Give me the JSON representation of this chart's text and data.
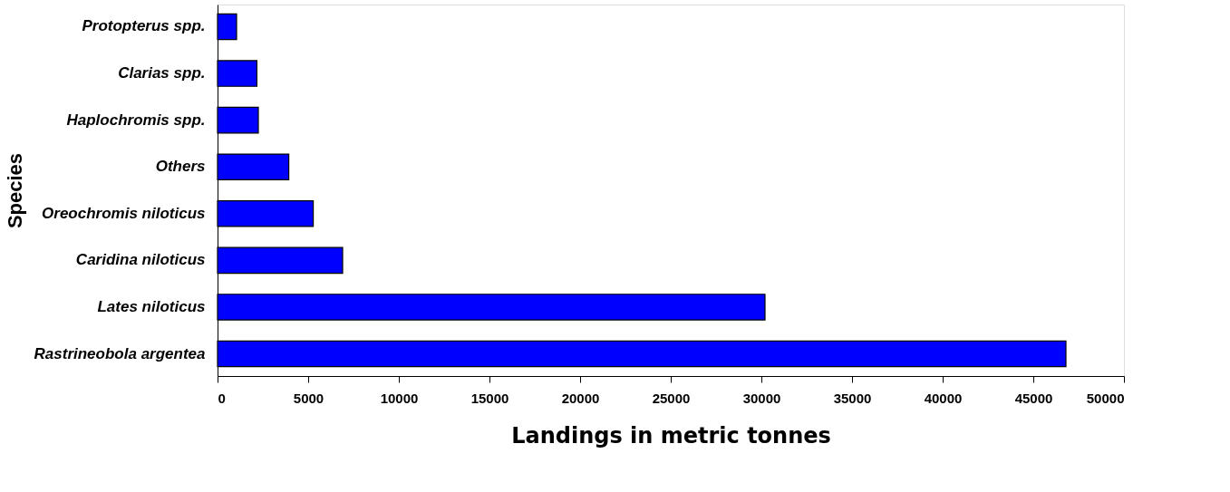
{
  "chart_data": {
    "type": "bar",
    "orientation": "horizontal",
    "xlabel": "Landings in metric tonnes",
    "ylabel": "Species",
    "categories": [
      "Protopterus spp.",
      "Clarias spp.",
      "Haplochromis spp.",
      "Others",
      "Oreochromis  niloticus",
      "Caridina niloticus",
      "Lates niloticus",
      "Rastrineobola argentea"
    ],
    "values": [
      1050,
      2170,
      2250,
      3930,
      5280,
      6900,
      30200,
      46800
    ],
    "color": "#0000ff",
    "xlim": [
      0,
      50000
    ],
    "xticks": [
      0,
      5000,
      10000,
      15000,
      20000,
      25000,
      30000,
      35000,
      40000,
      45000,
      50000
    ],
    "grid": false
  }
}
